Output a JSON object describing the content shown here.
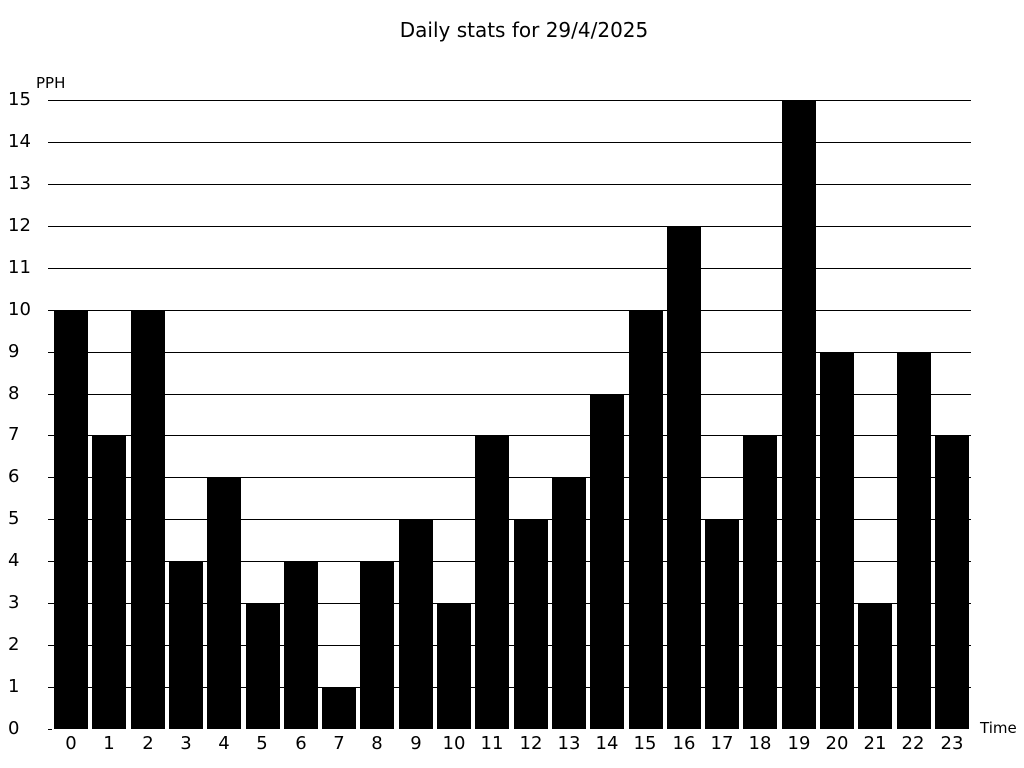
{
  "chart_data": {
    "type": "bar",
    "title": "Daily stats for 29/4/2025",
    "ylabel": "PPH",
    "xlabel": "Time",
    "categories": [
      "0",
      "1",
      "2",
      "3",
      "4",
      "5",
      "6",
      "7",
      "8",
      "9",
      "10",
      "11",
      "12",
      "13",
      "14",
      "15",
      "16",
      "17",
      "18",
      "19",
      "20",
      "21",
      "22",
      "23"
    ],
    "values": [
      10,
      7,
      10,
      4,
      6,
      3,
      4,
      1,
      4,
      5,
      3,
      7,
      5,
      6,
      8,
      10,
      12,
      5,
      7,
      15,
      9,
      3,
      9,
      7
    ],
    "ylim": [
      0,
      15
    ],
    "ytick_step": 1,
    "grid": true,
    "legend": "none",
    "bar_color": "#000000",
    "grid_color": "#000000",
    "text_color": "#000000",
    "background_color": "#ffffff"
  }
}
